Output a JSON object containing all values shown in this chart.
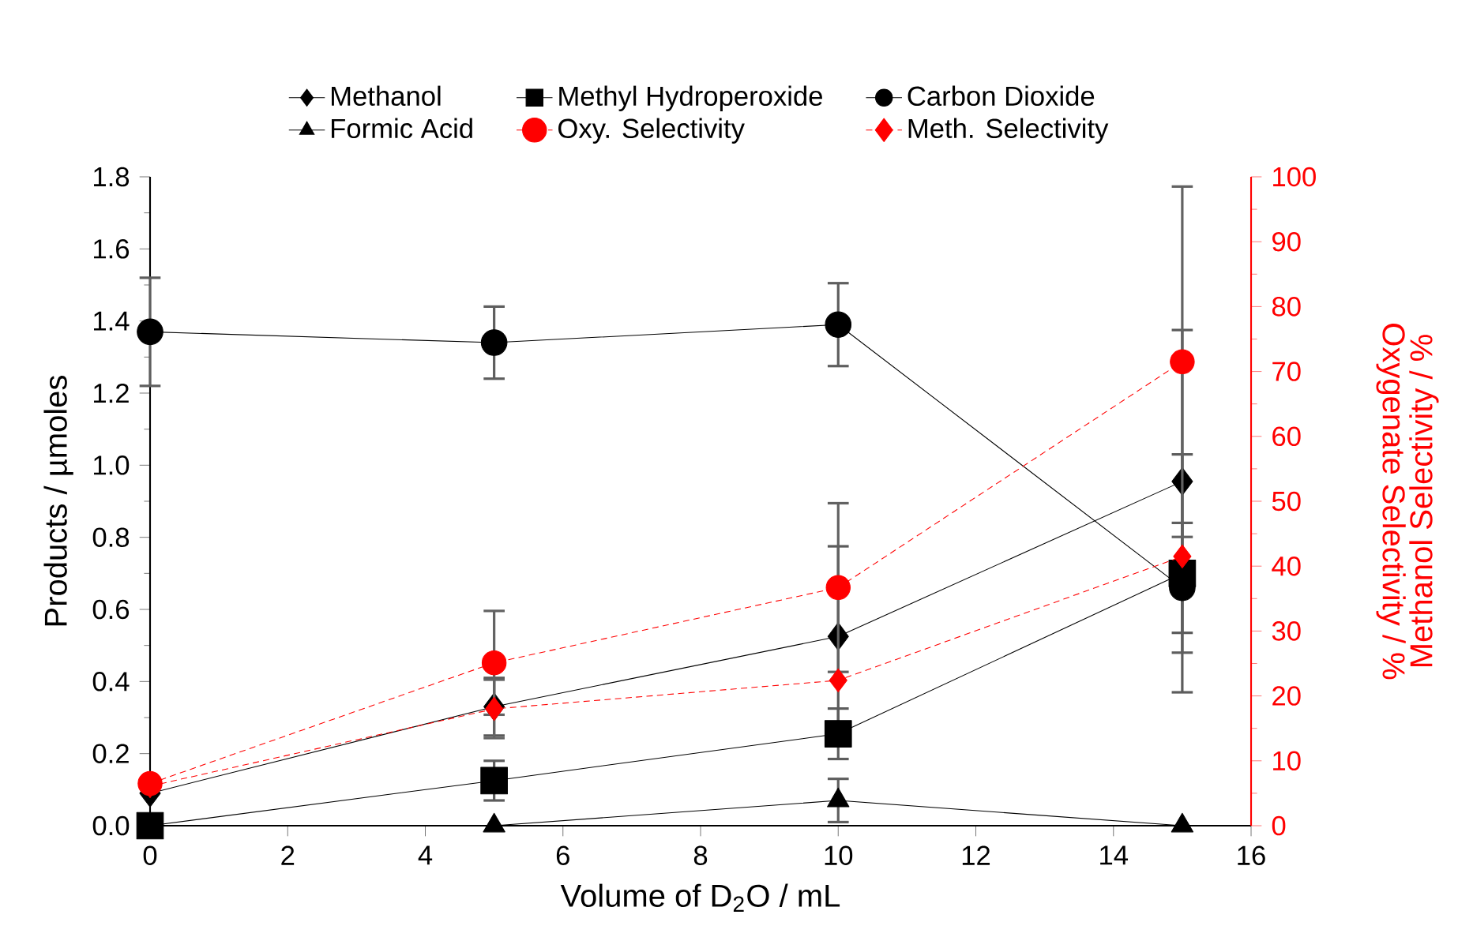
{
  "chart_data": {
    "type": "line",
    "xlabel": "Volume of D$_{2}$O / mL",
    "ylabel": "Products / µmoles",
    "y2label": "Oxygenate Selectivity / %",
    "annotations": [
      "Methanol Selectivity / %"
    ],
    "x": [
      0,
      5,
      10,
      15
    ],
    "xlim": [
      0,
      16
    ],
    "xticks": [
      0,
      2,
      4,
      6,
      8,
      10,
      12,
      14,
      16
    ],
    "ylim": [
      0,
      1.8
    ],
    "yticks": [
      {
        "value": 0,
        "label": "0.0"
      },
      {
        "value": 0.2,
        "label": "0.2"
      },
      {
        "value": 0.4,
        "label": "0.4"
      },
      {
        "value": 0.6,
        "label": "0.6"
      },
      {
        "value": 0.8,
        "label": "0.8"
      },
      {
        "value": 1.0,
        "label": "1.0"
      },
      {
        "value": 1.2,
        "label": "1.2"
      },
      {
        "value": 1.4,
        "label": "1.4"
      },
      {
        "value": 1.6,
        "label": "1.6"
      },
      {
        "value": 1.8,
        "label": "1.8"
      }
    ],
    "y2lim": [
      0,
      100
    ],
    "y2ticks": [
      0,
      10,
      20,
      30,
      40,
      50,
      60,
      70,
      80,
      90,
      100
    ],
    "legend": "top",
    "grid": false,
    "series": [
      {
        "name": "Methanol",
        "color": "#000000",
        "marker": "diamond",
        "line_style": "solid",
        "values": [
          0.09,
          0.33,
          0.525,
          0.955
        ],
        "errors": [
          null,
          0.08,
          0.25,
          0.42
        ]
      },
      {
        "name": "Methyl Hydroperoxide",
        "color": "#000000",
        "marker": "square",
        "line_style": "solid",
        "values": [
          0,
          0.125,
          0.255,
          0.7
        ],
        "errors": [
          null,
          0.055,
          0.07,
          0.33
        ]
      },
      {
        "name": "Carbon Dioxide",
        "color": "#000000",
        "marker": "circle",
        "line_style": "solid",
        "values": [
          1.37,
          1.34,
          1.39,
          0.66
        ],
        "errors": [
          0.15,
          0.1,
          0.115,
          0.18
        ]
      },
      {
        "name": "Formic Acid",
        "color": "#000000",
        "marker": "triangle",
        "line_style": "solid",
        "values": [
          0,
          0,
          0.07,
          0
        ],
        "errors": [
          null,
          null,
          0.06,
          null
        ]
      },
      {
        "name": "Oxy. Selectivity",
        "color": "#ff0000",
        "marker": "circle",
        "line_style": "dashed",
        "axis": "y2",
        "values": [
          6.5,
          25.1,
          36.7,
          71.5
        ],
        "errors": [
          null,
          8,
          13,
          27
        ]
      },
      {
        "name": "Meth. Selectivity",
        "color": "#ff0000",
        "marker": "diamond",
        "line_style": "dashed",
        "axis": "y2",
        "values": [
          6.1,
          18.0,
          22.4,
          41.5
        ],
        "errors": [
          null,
          4.5,
          null,
          null
        ]
      }
    ]
  }
}
